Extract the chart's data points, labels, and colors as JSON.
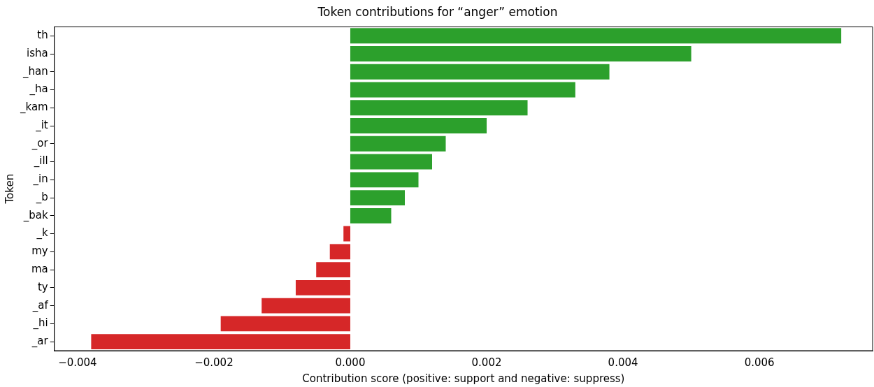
{
  "chart_data": {
    "type": "bar",
    "orientation": "horizontal",
    "title": "Token contributions for “anger” emotion",
    "xlabel": "Contribution score (positive: support and negative: suppress)",
    "ylabel": "Token",
    "categories": [
      "th",
      "isha",
      "_han",
      "_ha",
      "_kam",
      "_it",
      "_or",
      "_ill",
      "_in",
      "_b",
      "_bak",
      "_k",
      "my",
      "ma",
      "ty",
      "_af",
      "_hi",
      "_ar"
    ],
    "values": [
      0.0072,
      0.005,
      0.0038,
      0.0033,
      0.0026,
      0.002,
      0.0014,
      0.0012,
      0.001,
      0.0008,
      0.0006,
      -0.0001,
      -0.0003,
      -0.0005,
      -0.0008,
      -0.0013,
      -0.0019,
      -0.0038
    ],
    "colors": [
      "#2ca02c",
      "#2ca02c",
      "#2ca02c",
      "#2ca02c",
      "#2ca02c",
      "#2ca02c",
      "#2ca02c",
      "#2ca02c",
      "#2ca02c",
      "#2ca02c",
      "#2ca02c",
      "#d62728",
      "#d62728",
      "#d62728",
      "#d62728",
      "#d62728",
      "#d62728",
      "#d62728"
    ],
    "xlim": [
      -0.00434,
      0.00766
    ],
    "xticks": [
      {
        "value": -0.004,
        "label": "−0.004"
      },
      {
        "value": -0.002,
        "label": "−0.002"
      },
      {
        "value": 0,
        "label": "0.000"
      },
      {
        "value": 0.002,
        "label": "0.002"
      },
      {
        "value": 0.004,
        "label": "0.004"
      },
      {
        "value": 0.006,
        "label": "0.006"
      }
    ],
    "grid": false,
    "legend": false
  }
}
